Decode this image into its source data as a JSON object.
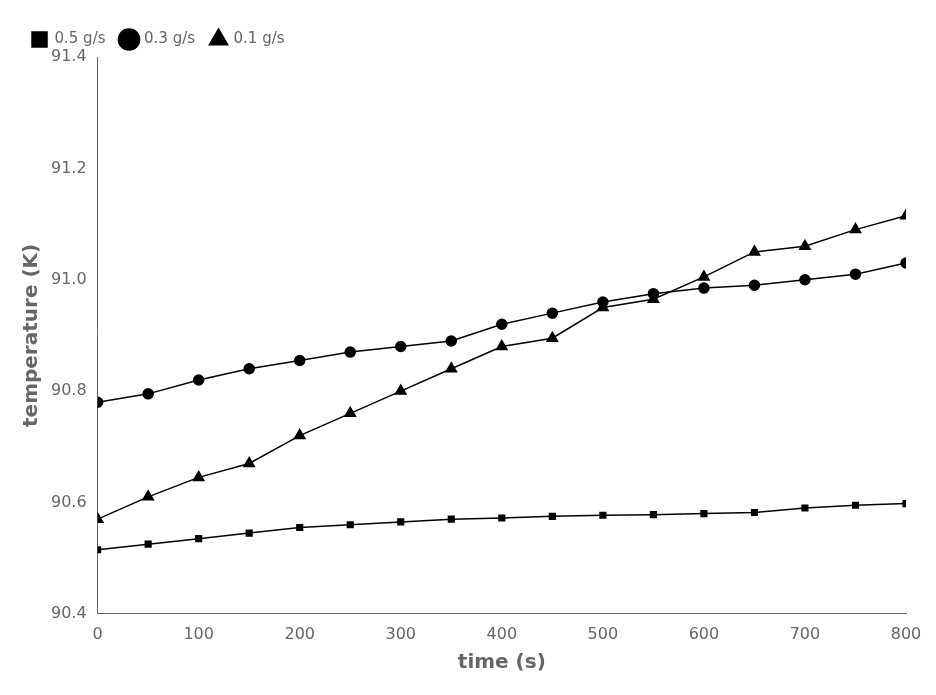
{
  "chart_data": {
    "type": "line",
    "xlabel": "time (s)",
    "ylabel": "temperature (K)",
    "xlim": [
      0,
      800
    ],
    "ylim": [
      90.4,
      91.4
    ],
    "xticks": [
      0,
      100,
      200,
      300,
      400,
      500,
      600,
      700,
      800
    ],
    "yticks": [
      90.4,
      90.6,
      90.8,
      {
        "value": 91.0,
        "label": "91.0"
      },
      91.2,
      91.4
    ],
    "x": [
      0,
      50,
      100,
      150,
      200,
      250,
      300,
      350,
      400,
      450,
      500,
      550,
      600,
      650,
      700,
      750,
      800
    ],
    "series": [
      {
        "name": "0.5 g/s",
        "color": "#000000",
        "marker": "square",
        "values": [
          90.515,
          90.525,
          90.535,
          90.545,
          90.555,
          90.56,
          90.565,
          90.57,
          90.572,
          90.575,
          90.577,
          90.578,
          90.58,
          90.582,
          90.59,
          90.595,
          90.598
        ]
      },
      {
        "name": "0.3 g/s",
        "color": "#000000",
        "marker": "circle",
        "values": [
          90.78,
          90.795,
          90.82,
          90.84,
          90.855,
          90.87,
          90.88,
          90.89,
          90.92,
          90.94,
          90.96,
          90.975,
          90.985,
          90.99,
          91.0,
          91.01,
          91.03
        ]
      },
      {
        "name": "0.1 g/s",
        "color": "#000000",
        "marker": "triangle",
        "values": [
          90.57,
          90.61,
          90.645,
          90.67,
          90.72,
          90.76,
          90.8,
          90.84,
          90.88,
          90.895,
          90.95,
          90.965,
          91.005,
          91.05,
          91.06,
          91.09,
          91.115
        ]
      }
    ],
    "legend": "upper left",
    "grid": false
  }
}
